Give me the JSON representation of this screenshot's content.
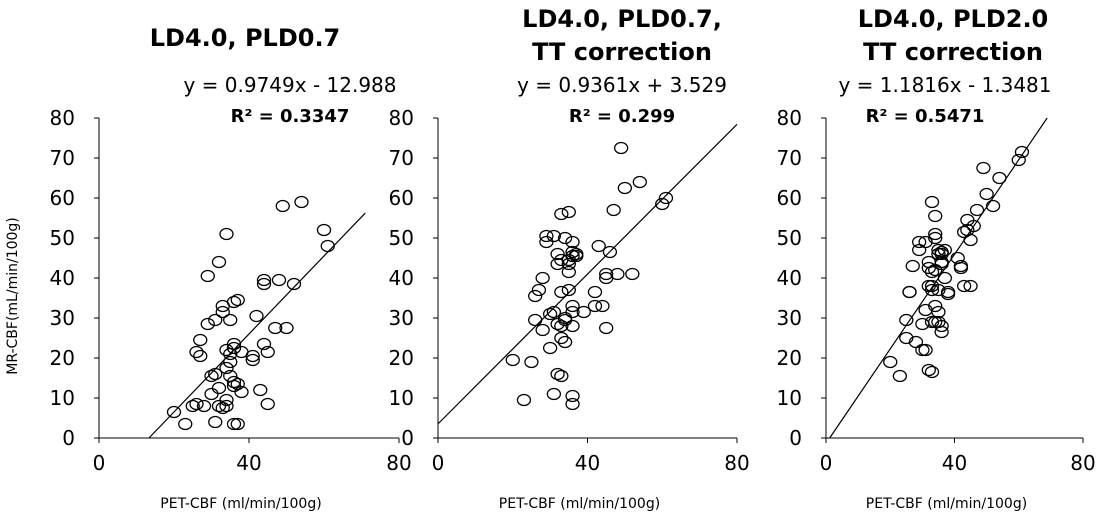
{
  "figure": {
    "ylabel": "MR-CBF(mL/min/100g)"
  },
  "chart_data": [
    {
      "type": "scatter",
      "title": [
        "LD4.0, PLD0.7"
      ],
      "equation": "y = 0.9749x - 12.988",
      "r2": "R² = 0.3347",
      "xlabel": "PET-CBF (ml/min/100g)",
      "ylabel": "MR-CBF(mL/min/100g)",
      "xlim": [
        0,
        80
      ],
      "ylim": [
        0,
        80
      ],
      "xticks": [
        "0",
        "40",
        "80"
      ],
      "yticks": [
        "0",
        "10",
        "20",
        "30",
        "40",
        "50",
        "60",
        "70",
        "80"
      ],
      "trendline": {
        "slope": 0.9749,
        "intercept": -12.988
      },
      "points": [
        [
          20,
          6.5
        ],
        [
          23,
          3.5
        ],
        [
          25,
          8
        ],
        [
          26,
          8.5
        ],
        [
          26,
          21.5
        ],
        [
          27,
          20.5
        ],
        [
          27,
          24.5
        ],
        [
          28,
          8
        ],
        [
          29,
          28.5
        ],
        [
          29,
          40.5
        ],
        [
          30,
          15.5
        ],
        [
          30,
          11
        ],
        [
          31,
          16
        ],
        [
          31,
          4
        ],
        [
          31,
          29.5
        ],
        [
          32,
          44
        ],
        [
          32,
          12.5
        ],
        [
          32,
          8
        ],
        [
          33,
          33
        ],
        [
          33,
          31.5
        ],
        [
          33,
          7.5
        ],
        [
          34,
          51
        ],
        [
          34,
          9.5
        ],
        [
          34,
          22
        ],
        [
          34,
          17.5
        ],
        [
          34,
          8
        ],
        [
          35,
          15.5
        ],
        [
          35,
          29.5
        ],
        [
          35,
          21
        ],
        [
          35,
          19
        ],
        [
          36,
          23.5
        ],
        [
          36,
          22.5
        ],
        [
          36,
          14
        ],
        [
          36,
          13
        ],
        [
          36,
          34
        ],
        [
          36,
          3.5
        ],
        [
          37,
          34.5
        ],
        [
          37,
          13.5
        ],
        [
          37,
          3.5
        ],
        [
          38,
          21.5
        ],
        [
          38,
          11.5
        ],
        [
          41,
          19.5
        ],
        [
          41,
          20.5
        ],
        [
          42,
          30.5
        ],
        [
          43,
          12
        ],
        [
          44,
          23.5
        ],
        [
          44,
          38.5
        ],
        [
          44,
          39.5
        ],
        [
          45,
          8.5
        ],
        [
          45,
          21.5
        ],
        [
          47,
          27.5
        ],
        [
          48,
          39.5
        ],
        [
          49,
          58
        ],
        [
          50,
          27.5
        ],
        [
          52,
          38.5
        ],
        [
          54,
          59
        ],
        [
          60,
          52
        ],
        [
          61,
          48
        ]
      ]
    },
    {
      "type": "scatter",
      "title": [
        "LD4.0, PLD0.7,",
        "TT correction"
      ],
      "equation": "y = 0.9361x + 3.529",
      "r2": "R² = 0.299",
      "xlabel": "PET-CBF (ml/min/100g)",
      "ylabel": "",
      "xlim": [
        0,
        80
      ],
      "ylim": [
        0,
        80
      ],
      "xticks": [
        "0",
        "40",
        "80"
      ],
      "yticks": [
        "0",
        "10",
        "20",
        "30",
        "40",
        "50",
        "60",
        "70",
        "80"
      ],
      "trendline": {
        "slope": 0.9361,
        "intercept": 3.529
      },
      "points": [
        [
          20,
          19.5
        ],
        [
          23,
          9.5
        ],
        [
          25,
          19
        ],
        [
          26,
          29.5
        ],
        [
          26,
          35.5
        ],
        [
          27,
          37
        ],
        [
          28,
          40
        ],
        [
          28,
          27
        ],
        [
          29,
          49
        ],
        [
          29,
          50.5
        ],
        [
          30,
          31
        ],
        [
          30,
          22.5
        ],
        [
          31,
          11
        ],
        [
          31,
          31.5
        ],
        [
          31,
          50.5
        ],
        [
          32,
          16
        ],
        [
          32,
          28.5
        ],
        [
          32,
          43.5
        ],
        [
          32,
          46
        ],
        [
          33,
          15.5
        ],
        [
          33,
          28
        ],
        [
          33,
          25
        ],
        [
          33,
          44.5
        ],
        [
          33,
          36.5
        ],
        [
          33,
          56
        ],
        [
          34,
          50
        ],
        [
          34,
          30
        ],
        [
          34,
          29.5
        ],
        [
          34,
          24
        ],
        [
          35,
          41.5
        ],
        [
          35,
          44.5
        ],
        [
          35,
          43.5
        ],
        [
          35,
          56.5
        ],
        [
          35,
          37
        ],
        [
          36,
          33
        ],
        [
          36,
          31.5
        ],
        [
          36,
          28
        ],
        [
          36,
          45.5
        ],
        [
          36,
          46.5
        ],
        [
          36,
          49
        ],
        [
          36,
          10.5
        ],
        [
          36,
          8.5
        ],
        [
          37,
          46
        ],
        [
          37,
          45.5
        ],
        [
          39,
          31.5
        ],
        [
          42,
          33
        ],
        [
          42,
          36.5
        ],
        [
          43,
          48
        ],
        [
          44,
          33
        ],
        [
          45,
          27.5
        ],
        [
          45,
          41
        ],
        [
          45,
          40
        ],
        [
          46,
          46.5
        ],
        [
          47,
          57
        ],
        [
          48,
          41
        ],
        [
          49,
          72.5
        ],
        [
          50,
          62.5
        ],
        [
          52,
          41
        ],
        [
          54,
          64
        ],
        [
          60,
          58.5
        ],
        [
          61,
          60
        ]
      ]
    },
    {
      "type": "scatter",
      "title": [
        "LD4.0, PLD2.0",
        "TT correction"
      ],
      "equation": "y = 1.1816x - 1.3481",
      "r2": "R² = 0.5471",
      "xlabel": "PET-CBF (ml/min/100g)",
      "ylabel": "",
      "xlim": [
        0,
        80
      ],
      "ylim": [
        0,
        80
      ],
      "xticks": [
        "0",
        "40",
        "80"
      ],
      "yticks": [
        "0",
        "10",
        "20",
        "30",
        "40",
        "50",
        "60",
        "70",
        "80"
      ],
      "trendline": {
        "slope": 1.1816,
        "intercept": -1.3481
      },
      "points": [
        [
          20,
          19
        ],
        [
          23,
          15.5
        ],
        [
          25,
          25
        ],
        [
          25,
          29.5
        ],
        [
          26,
          36.5
        ],
        [
          26,
          36.5
        ],
        [
          27,
          43
        ],
        [
          28,
          24
        ],
        [
          29,
          47
        ],
        [
          29,
          49
        ],
        [
          30,
          28.5
        ],
        [
          30,
          22
        ],
        [
          31,
          22
        ],
        [
          31,
          32
        ],
        [
          31,
          49
        ],
        [
          32,
          17
        ],
        [
          32,
          38
        ],
        [
          32,
          44
        ],
        [
          32,
          42.5
        ],
        [
          33,
          16.5
        ],
        [
          33,
          38
        ],
        [
          33,
          29
        ],
        [
          33,
          41.5
        ],
        [
          33,
          37
        ],
        [
          33,
          59
        ],
        [
          34,
          51
        ],
        [
          34,
          42
        ],
        [
          34,
          33
        ],
        [
          34,
          29
        ],
        [
          34,
          55.5
        ],
        [
          34,
          50
        ],
        [
          35,
          31.5
        ],
        [
          35,
          46
        ],
        [
          35,
          47
        ],
        [
          35,
          37
        ],
        [
          35,
          29
        ],
        [
          36,
          28
        ],
        [
          36,
          26.5
        ],
        [
          36,
          46
        ],
        [
          36,
          46.5
        ],
        [
          36,
          43.5
        ],
        [
          36,
          44
        ],
        [
          37,
          47
        ],
        [
          37,
          40
        ],
        [
          38,
          36.5
        ],
        [
          38,
          36
        ],
        [
          41,
          45
        ],
        [
          42,
          42.5
        ],
        [
          42,
          43
        ],
        [
          43,
          51.5
        ],
        [
          43,
          38
        ],
        [
          44,
          52
        ],
        [
          44,
          54.5
        ],
        [
          45,
          38
        ],
        [
          45,
          49.5
        ],
        [
          46,
          53
        ],
        [
          47,
          57
        ],
        [
          49,
          67.5
        ],
        [
          50,
          61
        ],
        [
          52,
          58
        ],
        [
          54,
          65
        ],
        [
          60,
          69.5
        ],
        [
          61,
          71.5
        ]
      ]
    }
  ]
}
